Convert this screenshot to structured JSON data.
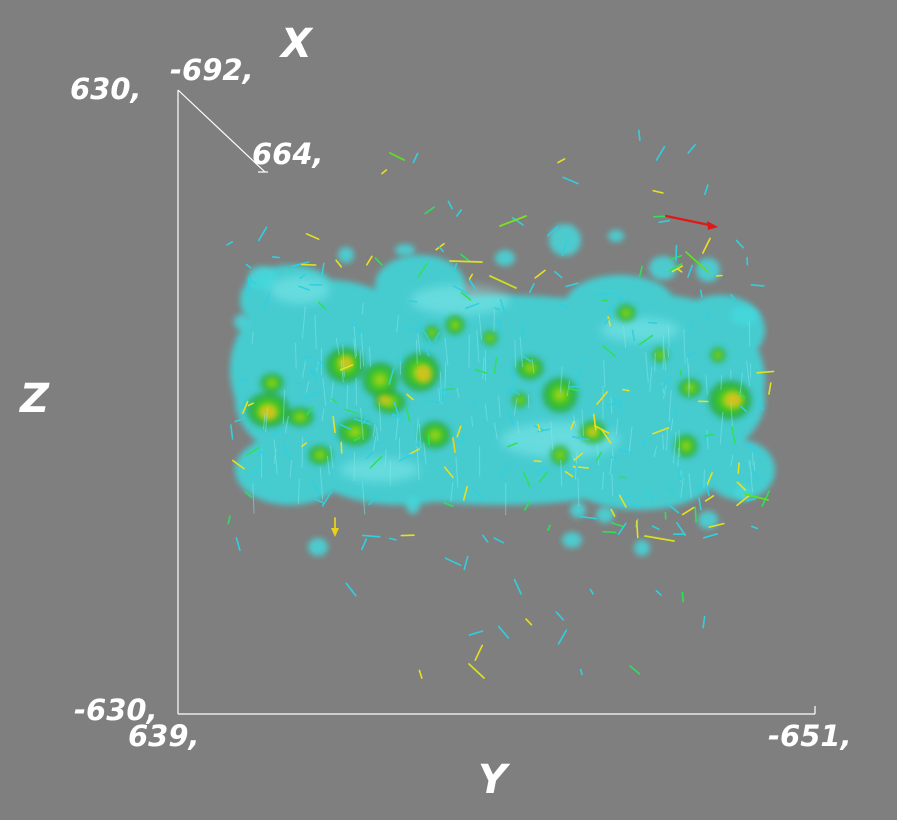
{
  "axes": {
    "x": {
      "name": "X",
      "min_label": "-692,",
      "max_label": "664,"
    },
    "y": {
      "name": "Y",
      "min_label": "639,",
      "max_label": "-651,"
    },
    "z": {
      "name": "Z",
      "max_label": "630,",
      "min_label": "-630,"
    }
  },
  "colors": {
    "background": "#7f7f7f",
    "axis_lines": "#ffffff",
    "isosurface_low": "#3fd3d6",
    "isosurface_mid": "#2fc41a",
    "isosurface_high": "#e0c021",
    "vector_low": "#2fd0e0",
    "vector_mid": "#2ee05a",
    "vector_high": "#e8e020",
    "vector_max": "#e01818"
  }
}
